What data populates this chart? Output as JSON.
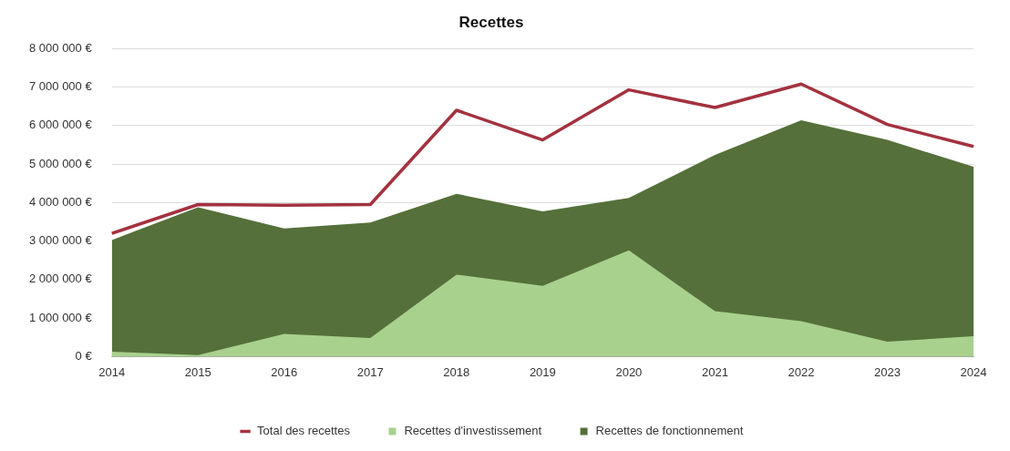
{
  "chart_data": {
    "type": "area",
    "title": "Recettes",
    "categories": [
      "2014",
      "2015",
      "2016",
      "2017",
      "2018",
      "2019",
      "2020",
      "2021",
      "2022",
      "2023",
      "2024"
    ],
    "series": [
      {
        "name": "Recettes de fonctionnement",
        "color": "#55703a",
        "values": [
          3030000,
          3880000,
          3330000,
          3480000,
          4230000,
          3770000,
          4120000,
          5240000,
          6140000,
          5630000,
          4930000
        ]
      },
      {
        "name": "Recettes d'investissement",
        "color": "#a9d18e",
        "values": [
          130000,
          40000,
          590000,
          480000,
          2130000,
          1840000,
          2760000,
          1180000,
          920000,
          390000,
          530000
        ]
      },
      {
        "name": "Total des recettes",
        "type": "line",
        "color": "#a3323f",
        "values": [
          3200000,
          3950000,
          3930000,
          3950000,
          6400000,
          5630000,
          6930000,
          6470000,
          7080000,
          6030000,
          5460000
        ]
      }
    ],
    "ylim": [
      0,
      8000000
    ],
    "yticks": [
      {
        "value": 0,
        "label": "0 €"
      },
      {
        "value": 1000000,
        "label": "1 000 000 €"
      },
      {
        "value": 2000000,
        "label": "2 000 000 €"
      },
      {
        "value": 3000000,
        "label": "3 000 000 €"
      },
      {
        "value": 4000000,
        "label": "4 000 000 €"
      },
      {
        "value": 5000000,
        "label": "5 000 000 €"
      },
      {
        "value": 6000000,
        "label": "6 000 000 €"
      },
      {
        "value": 7000000,
        "label": "7 000 000 €"
      },
      {
        "value": 8000000,
        "label": "8 000 000 €"
      }
    ],
    "grid": "y",
    "legend": "bottom"
  }
}
